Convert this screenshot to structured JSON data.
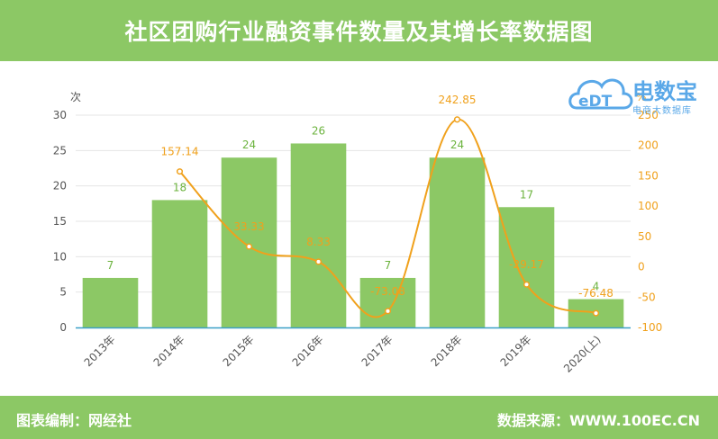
{
  "header": {
    "title": "社区团购行业融资事件数量及其增长率数据图"
  },
  "footer": {
    "left": "图表编制：网经社",
    "right": "数据来源：WWW.100EC.CN"
  },
  "logo": {
    "mark": "eDT",
    "brand": "电数宝",
    "sub": "电商大数据库"
  },
  "colors": {
    "banner": "#8cc865",
    "bar": "#8cc865",
    "line": "#f0a11c",
    "baseline": "#3aa0c8",
    "logo": "#5aa8e8"
  },
  "chart_data": {
    "type": "bar",
    "categories": [
      "2013年",
      "2014年",
      "2015年",
      "2016年",
      "2017年",
      "2018年",
      "2019年",
      "2020(上)"
    ],
    "ylabel_left": "次",
    "ylabel_right": "%",
    "ylim_left": [
      0,
      30
    ],
    "yticks_left": [
      "0",
      "5",
      "10",
      "15",
      "20",
      "25",
      "30"
    ],
    "ylim_right": [
      -100,
      250
    ],
    "yticks_right": [
      "-100",
      "-50",
      "0",
      "50",
      "100",
      "150",
      "200",
      "250"
    ],
    "grid": true,
    "series": [
      {
        "type": "bar",
        "axis": "left",
        "values": [
          7,
          18,
          24,
          26,
          7,
          24,
          17,
          4
        ],
        "labels": [
          "7",
          "18",
          "24",
          "26",
          "7",
          "24",
          "17",
          "4"
        ]
      },
      {
        "type": "line",
        "axis": "right",
        "values": [
          null,
          157.14,
          33.33,
          8.33,
          -73.08,
          242.85,
          -29.17,
          -76.48
        ],
        "labels": [
          "",
          "157.14",
          "33.33",
          "8.33",
          "-73.08",
          "242.85",
          "-29.17",
          "-76.48"
        ]
      }
    ]
  }
}
